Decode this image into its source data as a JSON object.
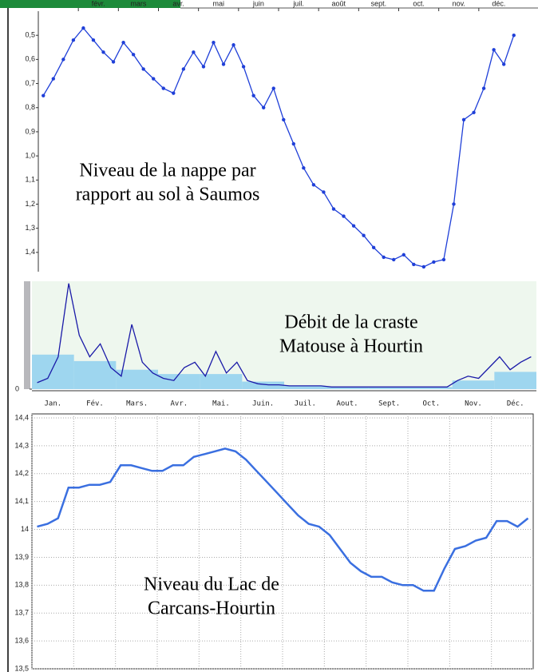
{
  "chart_data": [
    {
      "type": "line",
      "annotation": [
        "Niveau de la nappe par",
        "rapport au sol à Saumos"
      ],
      "categories": [
        null,
        null,
        null,
        null,
        "févr.",
        null,
        null,
        null,
        "mars",
        null,
        null,
        null,
        "avr.",
        null,
        null,
        null,
        "mai",
        null,
        null,
        null,
        "juin",
        null,
        null,
        null,
        "juil.",
        null,
        null,
        null,
        "août",
        null,
        null,
        null,
        "sept.",
        null,
        null,
        null,
        "oct.",
        null,
        null,
        null,
        "nov.",
        null,
        null,
        null,
        "déc.",
        null,
        null,
        null
      ],
      "values": [
        0.75,
        0.68,
        0.6,
        0.52,
        0.47,
        0.52,
        0.57,
        0.61,
        0.53,
        0.58,
        0.64,
        0.68,
        0.72,
        0.74,
        0.64,
        0.57,
        0.63,
        0.53,
        0.62,
        0.54,
        0.63,
        0.75,
        0.8,
        0.72,
        0.85,
        0.95,
        1.05,
        1.12,
        1.15,
        1.22,
        1.25,
        1.29,
        1.33,
        1.38,
        1.42,
        1.43,
        1.41,
        1.45,
        1.46,
        1.44,
        1.43,
        1.2,
        0.85,
        0.82,
        0.72,
        0.56,
        0.62,
        0.5
      ],
      "color": "#1f3fd8",
      "markers": true,
      "ylim": [
        1.48,
        0.4
      ],
      "yticks": [
        {
          "value": 0.5,
          "label": "0,5"
        },
        {
          "value": 0.6,
          "label": "0,6"
        },
        {
          "value": 0.7,
          "label": "0,7"
        },
        {
          "value": 0.8,
          "label": "0,8"
        },
        {
          "value": 0.9,
          "label": "0,9"
        },
        {
          "value": 1.0,
          "label": "1,0"
        },
        {
          "value": 1.1,
          "label": "1,1"
        },
        {
          "value": 1.2,
          "label": "1,2"
        },
        {
          "value": 1.3,
          "label": "1,3"
        },
        {
          "value": 1.4,
          "label": "1,4"
        }
      ],
      "grid": false
    },
    {
      "type": "bar-line",
      "annotation": [
        "Débit de la craste",
        "Matouse à Hourtin"
      ],
      "categories": [
        "Jan.",
        null,
        null,
        null,
        "Fév.",
        null,
        null,
        null,
        "Mars.",
        null,
        null,
        null,
        "Avr.",
        null,
        null,
        null,
        "Mai.",
        null,
        null,
        null,
        "Juin.",
        null,
        null,
        null,
        "Juil.",
        null,
        null,
        null,
        "Aout.",
        null,
        null,
        null,
        "Sept.",
        null,
        null,
        null,
        "Oct.",
        null,
        null,
        null,
        "Nov.",
        null,
        null,
        null,
        "Déc.",
        null,
        null,
        null
      ],
      "values": [
        6,
        10,
        30,
        98,
        50,
        30,
        42,
        20,
        12,
        60,
        25,
        15,
        10,
        8,
        20,
        25,
        12,
        35,
        15,
        25,
        8,
        5,
        4,
        4,
        3,
        3,
        3,
        3,
        2,
        2,
        2,
        2,
        2,
        2,
        2,
        2,
        2,
        2,
        2,
        2,
        8,
        12,
        10,
        20,
        30,
        18,
        25,
        30
      ],
      "bar_values": [
        32,
        26,
        18,
        14,
        14,
        7,
        3,
        2,
        2,
        2,
        8,
        16
      ],
      "color": "#1a1aa8",
      "bar_color": "#8fd0ee",
      "ylim": [
        0,
        100
      ],
      "yticks": [
        0
      ],
      "grid": false
    },
    {
      "type": "line",
      "annotation": [
        "Niveau du Lac de",
        "Carcans-Hourtin"
      ],
      "values": [
        14.01,
        14.02,
        14.04,
        14.15,
        14.15,
        14.16,
        14.16,
        14.17,
        14.23,
        14.23,
        14.22,
        14.21,
        14.21,
        14.23,
        14.23,
        14.26,
        14.27,
        14.28,
        14.29,
        14.28,
        14.25,
        14.21,
        14.17,
        14.13,
        14.09,
        14.05,
        14.02,
        14.01,
        13.98,
        13.93,
        13.88,
        13.85,
        13.83,
        13.83,
        13.81,
        13.8,
        13.8,
        13.78,
        13.78,
        13.86,
        13.93,
        13.94,
        13.96,
        13.97,
        14.03,
        14.03,
        14.01,
        14.04
      ],
      "color": "#3a6fe0",
      "markers": false,
      "ylim": [
        13.5,
        14.4
      ],
      "yticks": [
        {
          "value": 14.4,
          "label": "14,4"
        },
        {
          "value": 14.3,
          "label": "14,3"
        },
        {
          "value": 14.2,
          "label": "14,2"
        },
        {
          "value": 14.1,
          "label": "14,1"
        },
        14,
        {
          "value": 13.9,
          "label": "13,9"
        },
        {
          "value": 13.8,
          "label": "13,8"
        },
        {
          "value": 13.7,
          "label": "13,7"
        },
        {
          "value": 13.6,
          "label": "13,6"
        },
        {
          "value": 13.5,
          "label": "13,5"
        }
      ],
      "grid": true
    }
  ]
}
